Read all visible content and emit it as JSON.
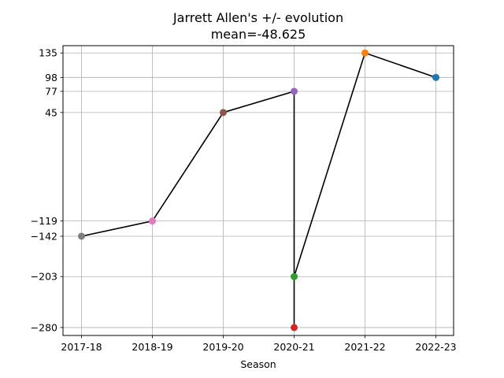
{
  "chart_data": {
    "type": "line",
    "title": "Jarrett Allen's +/- evolution",
    "subtitle": "mean=-48.625",
    "xlabel": "Season",
    "ylabel": "",
    "categories": [
      "2017-18",
      "2018-19",
      "2019-20",
      "2020-21",
      "2021-22",
      "2022-23"
    ],
    "yticks": [
      135,
      98,
      77,
      45,
      -119,
      -142,
      -203,
      -280
    ],
    "ylim": [
      -292,
      146
    ],
    "grid": true,
    "points": [
      {
        "x": "2017-18",
        "y": -142,
        "color": "#7f7f7f"
      },
      {
        "x": "2018-19",
        "y": -119,
        "color": "#e377c2"
      },
      {
        "x": "2019-20",
        "y": 45,
        "color": "#8c564b"
      },
      {
        "x": "2020-21",
        "y": 77,
        "color": "#9467bd"
      },
      {
        "x": "2020-21",
        "y": -280,
        "color": "#d62728"
      },
      {
        "x": "2020-21",
        "y": -203,
        "color": "#2ca02c"
      },
      {
        "x": "2021-22",
        "y": 135,
        "color": "#ff7f0e"
      },
      {
        "x": "2022-23",
        "y": 98,
        "color": "#1f77b4"
      }
    ],
    "line_color": "#000000"
  }
}
